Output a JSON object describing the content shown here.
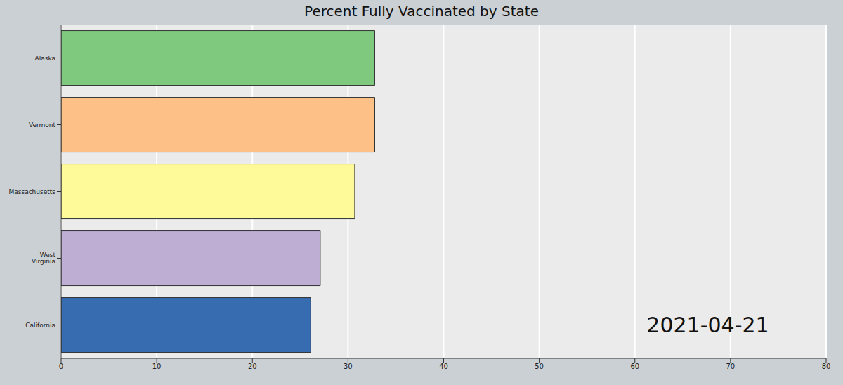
{
  "chart_data": {
    "type": "bar",
    "title": "Percent Fully Vaccinated by State",
    "orientation": "horizontal",
    "categories": [
      "Alaska",
      "Vermont",
      "Massachusetts",
      "West Virginia",
      "California"
    ],
    "values": [
      32.8,
      32.8,
      30.7,
      27.1,
      26.1
    ],
    "colors": [
      "#7fc97f",
      "#fdc086",
      "#fffa99",
      "#beaed4",
      "#386cb0"
    ],
    "xlim": [
      0,
      80
    ],
    "xticks": [
      0,
      10,
      20,
      30,
      40,
      50,
      60,
      70,
      80
    ],
    "grid": true,
    "annotation": "2021-04-21"
  }
}
